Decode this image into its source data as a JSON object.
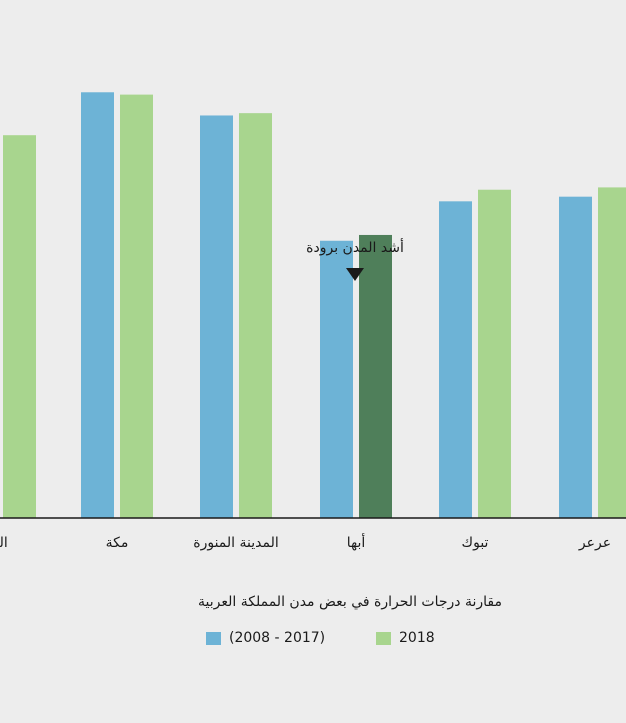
{
  "chart_data": {
    "type": "bar",
    "title": "مقارنة درجات الحرارة في بعض مدن المملكة العربية",
    "categories": [
      "الد",
      "مكة",
      "المدينة المنورة",
      "أبها",
      "تبوك",
      "عرعر"
    ],
    "series": [
      {
        "name": "(2008 - 2017)",
        "color": "#6db3d6",
        "values": [
          null,
          36.7,
          34.7,
          23.9,
          27.3,
          27.7
        ]
      },
      {
        "name": "2018",
        "color": "#a8d58e",
        "values": [
          33.0,
          36.5,
          34.9,
          24.4,
          28.3,
          28.5
        ]
      }
    ],
    "highlight": {
      "category": "أبها",
      "series": "2018",
      "color": "#4f7f5a"
    },
    "annotation": "أشد المدن برودة",
    "xlabel": "",
    "ylabel": "",
    "ylim": [
      0,
      40
    ],
    "grid": false,
    "legend": "bottom"
  }
}
